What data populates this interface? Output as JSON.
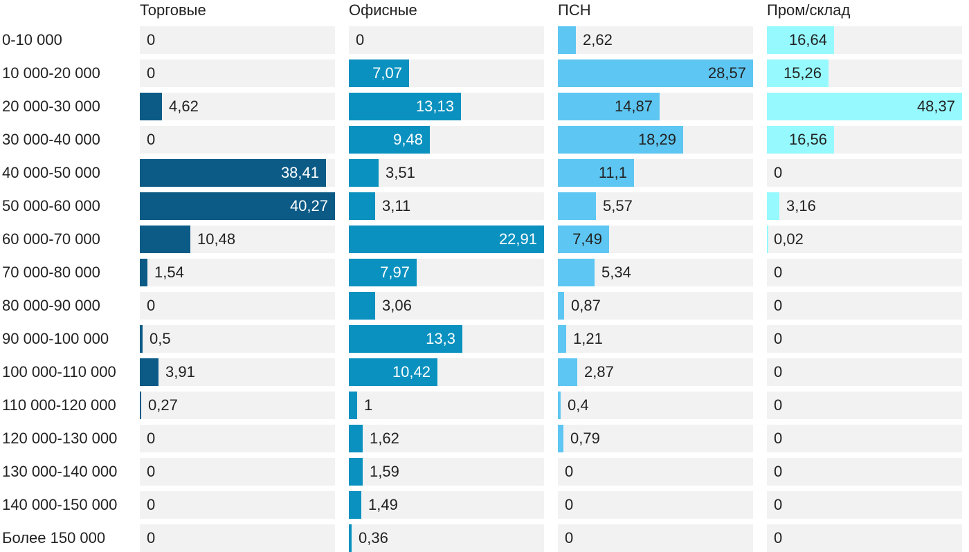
{
  "chart_data": {
    "type": "bar",
    "orientation": "horizontal",
    "layout": "small-multiples",
    "categories": [
      "0-10 000",
      "10 000-20 000",
      "20 000-30 000",
      "30 000-40 000",
      "40 000-50 000",
      "50 000-60 000",
      "60 000-70 000",
      "70 000-80 000",
      "80 000-90 000",
      "90 000-100 000",
      "100 000-110 000",
      "110 000-120 000",
      "120 000-130 000",
      "130 000-140 000",
      "140 000-150 000",
      "Более 150 000"
    ],
    "series": [
      {
        "name": "Торговые",
        "color": "#0b5b86",
        "values": [
          0,
          0,
          4.62,
          0,
          38.41,
          40.27,
          10.48,
          1.54,
          0,
          0.5,
          3.91,
          0.27,
          0,
          0,
          0,
          0
        ],
        "labels": [
          "0",
          "0",
          "4,62",
          "0",
          "38,41",
          "40,27",
          "10,48",
          "1,54",
          "0",
          "0,5",
          "3,91",
          "0,27",
          "0",
          "0",
          "0",
          "0"
        ]
      },
      {
        "name": "Офисные",
        "color": "#0a91bf",
        "values": [
          0,
          7.07,
          13.13,
          9.48,
          3.51,
          3.11,
          22.91,
          7.97,
          3.06,
          13.3,
          10.42,
          1,
          1.62,
          1.59,
          1.49,
          0.36
        ],
        "labels": [
          "0",
          "7,07",
          "13,13",
          "9,48",
          "3,51",
          "3,11",
          "22,91",
          "7,97",
          "3,06",
          "13,3",
          "10,42",
          "1",
          "1,62",
          "1,59",
          "1,49",
          "0,36"
        ]
      },
      {
        "name": "ПСН",
        "color": "#5ec6f2",
        "values": [
          2.62,
          28.57,
          14.87,
          18.29,
          11.1,
          5.57,
          7.49,
          5.34,
          0.87,
          1.21,
          2.87,
          0.4,
          0.79,
          0,
          0,
          0
        ],
        "labels": [
          "2,62",
          "28,57",
          "14,87",
          "18,29",
          "11,1",
          "5,57",
          "7,49",
          "5,34",
          "0,87",
          "1,21",
          "2,87",
          "0,4",
          "0,79",
          "0",
          "0",
          "0"
        ]
      },
      {
        "name": "Пром/склад",
        "color": "#96f9fd",
        "values": [
          16.64,
          15.26,
          48.37,
          16.56,
          0,
          3.16,
          0.02,
          0,
          0,
          0,
          0,
          0,
          0,
          0,
          0,
          0
        ],
        "labels": [
          "16,64",
          "15,26",
          "48,37",
          "16,56",
          "0",
          "3,16",
          "0,02",
          "0",
          "0",
          "0",
          "0",
          "0",
          "0",
          "0",
          "0",
          "0"
        ]
      }
    ],
    "value_label_inside_color": [
      "#ffffff",
      "#ffffff",
      "#222222",
      "#222222"
    ]
  }
}
